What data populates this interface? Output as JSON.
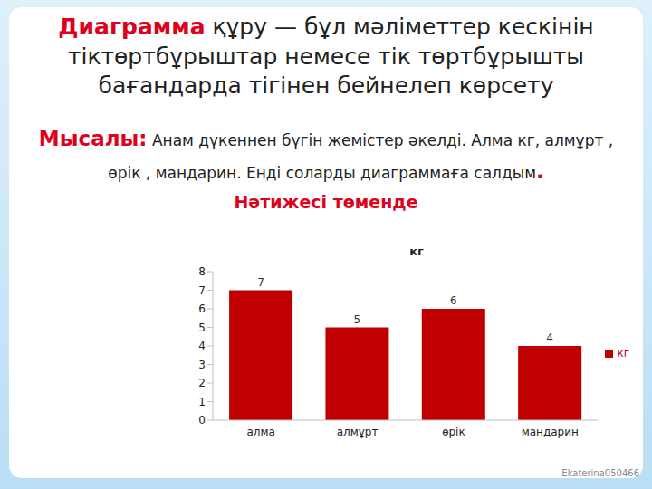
{
  "header": {
    "term": "Диаграмма",
    "definition": " құру — бұл мәліметтер кескінін тіктөртбұрыштар немесе тік төртбұрышты бағандарда тігінен бейнелеп көрсету",
    "example_label": "Мысалы:",
    "example_text": " Анам дүкеннен бүгін жемістер әкелді. Алма кг, алмұрт , өрік , мандарин. Енді соларды диаграммаға салдым",
    "example_end": ".",
    "result": "Нәтижесі төменде",
    "watermark": "Ekaterina050466"
  },
  "chart_data": {
    "type": "bar",
    "title": "кг",
    "categories": [
      "алма",
      "алмұрт",
      "өрік",
      "мандарин"
    ],
    "series": [
      {
        "name": "кг",
        "color": "#c00000",
        "values": [
          7,
          5,
          6,
          4
        ]
      }
    ],
    "ylim": [
      0,
      8
    ],
    "yticks": [
      0,
      1,
      2,
      3,
      4,
      5,
      6,
      7,
      8
    ],
    "grid": false,
    "legend": "right",
    "data_labels": true
  }
}
